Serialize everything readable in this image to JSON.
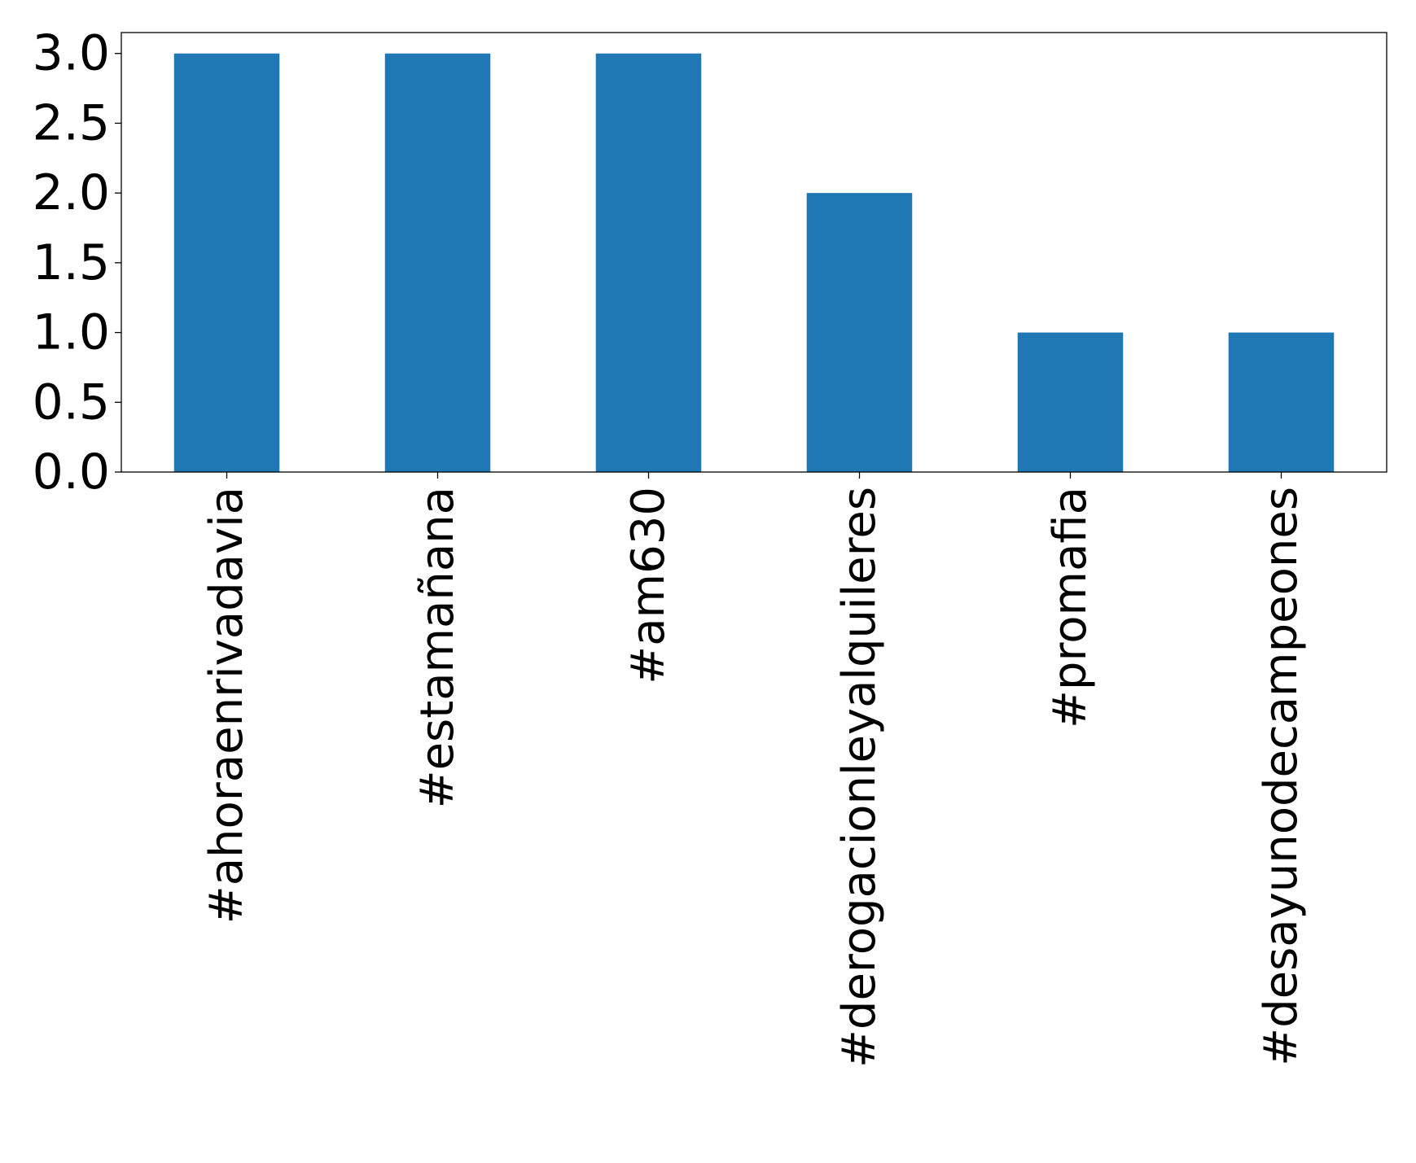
{
  "chart_data": {
    "type": "bar",
    "title": "",
    "xlabel": "",
    "ylabel": "",
    "categories": [
      "#ahoraenrivadavia",
      "#estamañana",
      "#am630",
      "#derogacionleyalquileres",
      "#promafia",
      "#desayunodecampeones"
    ],
    "values": [
      3,
      3,
      3,
      2,
      1,
      1
    ],
    "ylim": [
      0,
      3.15
    ],
    "yticks": [
      0.0,
      0.5,
      1.0,
      1.5,
      2.0,
      2.5,
      3.0
    ],
    "ytick_labels": [
      "0.0",
      "0.5",
      "1.0",
      "1.5",
      "2.0",
      "2.5",
      "3.0"
    ],
    "bar_color": "#1f77b4",
    "grid": false,
    "legend": "none",
    "xtick_rotation": "vertical"
  }
}
